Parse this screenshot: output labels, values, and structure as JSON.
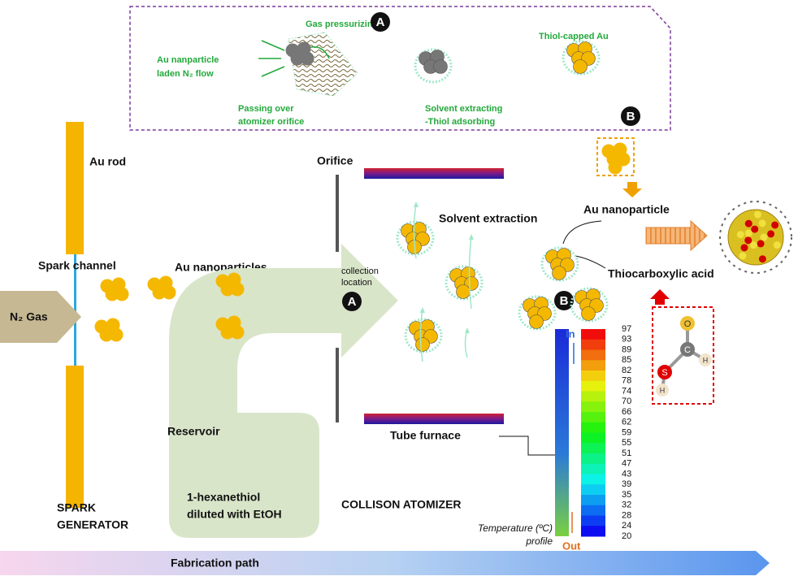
{
  "inset": {
    "gas_pressurizing": "Gas pressurizing",
    "marker_a": "A",
    "flow_label": [
      "Au nanparticle",
      "laden N₂ flow"
    ],
    "passing_label": [
      "Passing over",
      "atomizer orifice"
    ],
    "solvent_label": [
      "Solvent extracting",
      "-Thiol adsorbing"
    ],
    "thiol_capped": "Thiol-capped Au",
    "marker_b": "B"
  },
  "spark": {
    "au_rod": "Au rod",
    "spark_channel": "Spark channel",
    "n2_gas": "N₂ Gas",
    "au_nanoparticles": "Au nanoparticles",
    "title": [
      "SPARK",
      "GENERATOR"
    ]
  },
  "atomizer": {
    "orifice": "Orifice",
    "collection": [
      "collection",
      "location"
    ],
    "marker_a": "A",
    "reservoir": "Reservoir",
    "solution": [
      "1-hexanethiol",
      "diluted with EtOH"
    ],
    "title": "COLLISON ATOMIZER"
  },
  "furnace": {
    "solvent_extraction": "Solvent extraction",
    "tube_furnace": "Tube furnace",
    "in": "In",
    "out": "Out",
    "temperature_label": [
      "Temperature (ºC)",
      "profile"
    ],
    "colorbar_labels": [
      97,
      93,
      89,
      85,
      82,
      78,
      74,
      70,
      66,
      62,
      59,
      55,
      51,
      47,
      43,
      39,
      35,
      32,
      28,
      24,
      20
    ]
  },
  "product": {
    "au_nanoparticle": "Au nanoparticle",
    "thiocarboxylic_acid": "Thiocarboxylic acid",
    "marker_b": "B",
    "atoms": [
      "O",
      "C",
      "H",
      "S",
      "H"
    ]
  },
  "footer": {
    "fabrication_path": "Fabrication path"
  }
}
